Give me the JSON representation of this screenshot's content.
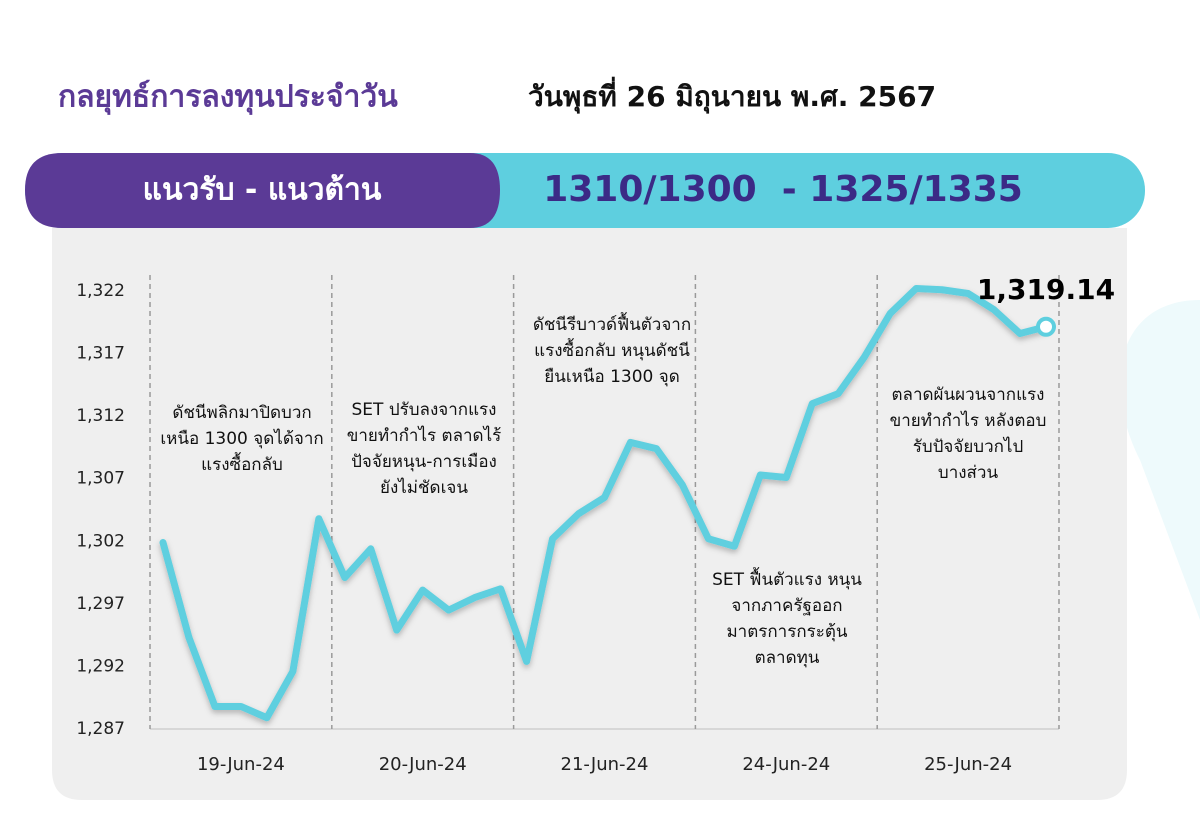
{
  "header": {
    "title": "กลยุทธ์การลงทุนประจำวัน",
    "date": "วันพุธที่ 26 มิถุนายน พ.ศ. 2567",
    "range_label": "แนวรับ - แนวต้าน",
    "range_value": "1310/1300  - 1325/1335"
  },
  "chart_data": {
    "type": "line",
    "categories": [
      null,
      null,
      null,
      "19-Jun-24",
      null,
      null,
      null,
      null,
      null,
      null,
      "20-Jun-24",
      null,
      null,
      null,
      null,
      null,
      null,
      "21-Jun-24",
      null,
      null,
      null,
      null,
      null,
      null,
      "24-Jun-24",
      null,
      null,
      null,
      null,
      null,
      null,
      "25-Jun-24",
      null,
      null,
      null
    ],
    "series": [
      {
        "name": "SET",
        "color": "#5ecfdf",
        "values": [
          1301.9,
          1294.3,
          1288.8,
          1288.8,
          1287.9,
          1291.6,
          1303.8,
          1299.1,
          1301.4,
          1294.9,
          1298.1,
          1296.5,
          1297.5,
          1298.2,
          1292.4,
          1302.2,
          1304.2,
          1305.5,
          1309.9,
          1309.4,
          1306.5,
          1302.2,
          1301.6,
          1307.3,
          1307.1,
          1313.0,
          1313.8,
          1316.7,
          1320.2,
          1322.2,
          1322.1,
          1321.8,
          1320.5,
          1318.6,
          1319.14
        ],
        "value_labels": [
          null,
          null,
          null,
          null,
          null,
          null,
          null,
          null,
          null,
          null,
          null,
          null,
          null,
          null,
          null,
          null,
          null,
          null,
          null,
          null,
          null,
          null,
          null,
          null,
          null,
          null,
          null,
          null,
          null,
          null,
          null,
          null,
          null,
          null,
          "1,319.14"
        ]
      }
    ],
    "ylim": [
      1287,
      1322
    ],
    "yticks": [
      {
        "value": 1287,
        "label": "1,287"
      },
      {
        "value": 1292,
        "label": "1,292"
      },
      {
        "value": 1297,
        "label": "1,297"
      },
      {
        "value": 1302,
        "label": "1,302"
      },
      {
        "value": 1307,
        "label": "1,307"
      },
      {
        "value": 1312,
        "label": "1,312"
      },
      {
        "value": 1317,
        "label": "1,317"
      },
      {
        "value": 1322,
        "label": "1,322"
      }
    ],
    "grid": false,
    "annotations": [
      {
        "lines": [
          "ดัชนีพลิกมาปิดบวก",
          "เหนือ 1300 จุดได้จาก",
          "แรงซื้อกลับ"
        ]
      },
      {
        "lines": [
          "SET ปรับลงจากแรง",
          "ขายทำกำไร ตลาดไร้",
          "ปัจจัยหนุน-การเมือง",
          "ยังไม่ชัดเจน"
        ]
      },
      {
        "lines": [
          "ดัชนีรีบาวด์ฟื้นตัวจาก",
          "แรงซื้อกลับ หนุนดัชนี",
          "ยืนเหนือ 1300 จุด"
        ]
      },
      {
        "lines": [
          "SET ฟื้นตัวแรง หนุน",
          "จากภาครัฐออก",
          "มาตรการกระตุ้น",
          "ตลาดทุน"
        ]
      },
      {
        "lines": [
          "ตลาดผันผวนจากแรง",
          "ขายทำกำไร หลังตอบ",
          "รับปัจจัยบวกไป",
          "บางส่วน"
        ]
      }
    ]
  }
}
